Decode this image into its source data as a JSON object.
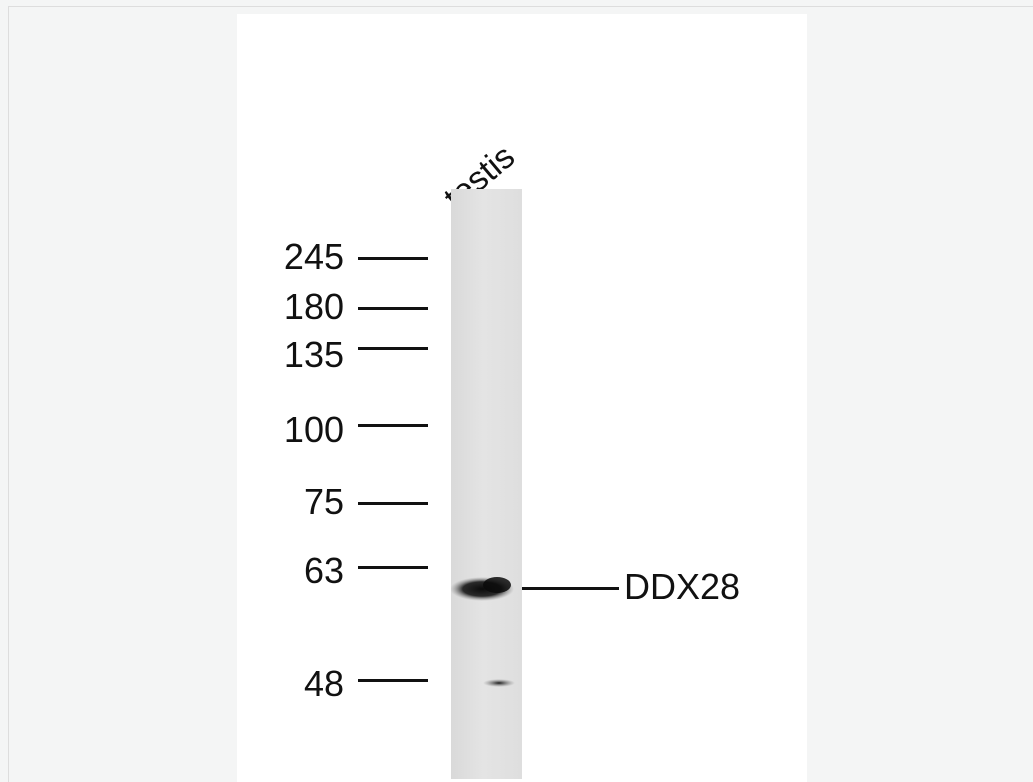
{
  "lane_label": "testis",
  "markers": [
    {
      "label": "245",
      "kda": 245
    },
    {
      "label": "180",
      "kda": 180
    },
    {
      "label": "135",
      "kda": 135
    },
    {
      "label": "100",
      "kda": 100
    },
    {
      "label": "75",
      "kda": 75
    },
    {
      "label": "63",
      "kda": 63
    },
    {
      "label": "48",
      "kda": 48
    }
  ],
  "band": {
    "label": "DDX28"
  }
}
